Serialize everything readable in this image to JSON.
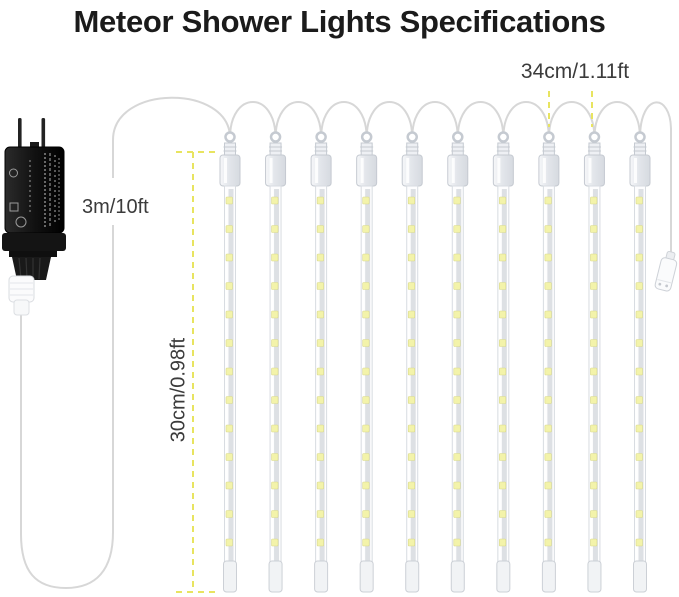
{
  "title": "Meteor Shower Lights Specifications",
  "annotations": {
    "cable_length": "3m/10ft",
    "tube_length": "30cm/0.98ft",
    "tube_spacing": "34cm/1.11ft"
  },
  "diagram": {
    "tube_count": 10,
    "leds_per_tube": 13,
    "colors": {
      "dash": "#e8e460",
      "cable": "#d7d7d7",
      "led": "#f3f3aa",
      "led_edge": "#d9d98c",
      "tube_fill": "#fdfdfe",
      "tube_stroke": "#d8dce1",
      "strip": "#dde0e4",
      "cap_fill": "#eef0f4",
      "cap_stroke": "#c5cad1",
      "adapter": "#161616",
      "label_text": "#3b3b3b",
      "title_text": "#1b1b1b"
    }
  }
}
